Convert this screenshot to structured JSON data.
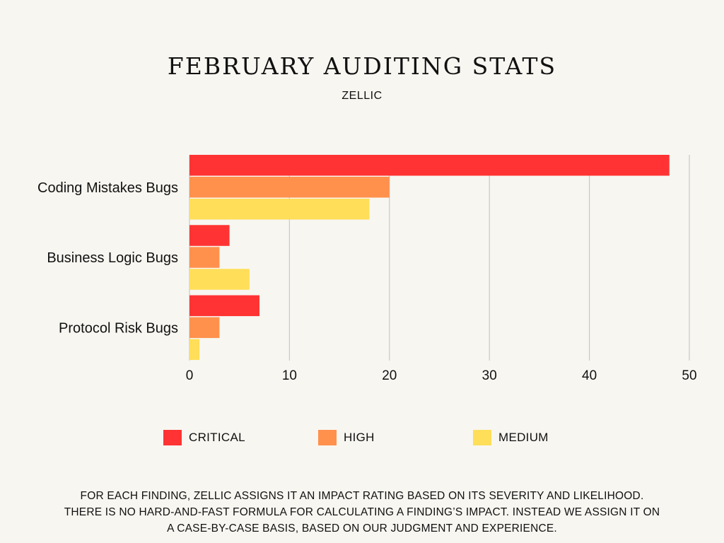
{
  "title": "FEBRUARY AUDITING STATS",
  "subtitle": "ZELLIC",
  "colors": {
    "critical": "#ff3333",
    "high": "#ff914d",
    "medium": "#ffde59",
    "grid": "#c8c8c8",
    "background": "#f8f6f1"
  },
  "legend": [
    {
      "label": "CRITICAL",
      "color_key": "critical"
    },
    {
      "label": "HIGH",
      "color_key": "high"
    },
    {
      "label": "MEDIUM",
      "color_key": "medium"
    }
  ],
  "footnote": "FOR EACH FINDING, ZELLIC ASSIGNS IT AN IMPACT RATING BASED ON ITS SEVERITY AND LIKELIHOOD. THERE IS NO HARD-AND-FAST FORMULA FOR CALCULATING A FINDING’S IMPACT. INSTEAD WE ASSIGN IT ON A CASE-BY-CASE BASIS, BASED ON OUR JUDGMENT AND EXPERIENCE.",
  "chart_data": {
    "type": "bar",
    "orientation": "horizontal",
    "title": "FEBRUARY AUDITING STATS",
    "subtitle": "ZELLIC",
    "categories": [
      "Coding Mistakes Bugs",
      "Business Logic Bugs",
      "Protocol Risk Bugs"
    ],
    "series": [
      {
        "name": "CRITICAL",
        "color_key": "critical",
        "values": [
          48,
          4,
          7
        ]
      },
      {
        "name": "HIGH",
        "color_key": "high",
        "values": [
          20,
          3,
          3
        ]
      },
      {
        "name": "MEDIUM",
        "color_key": "medium",
        "values": [
          18,
          6,
          1
        ]
      }
    ],
    "xlim": [
      0,
      50
    ],
    "xticks": [
      0,
      10,
      20,
      30,
      40,
      50
    ],
    "xlabel": "",
    "ylabel": "",
    "grid": true,
    "legend_position": "bottom"
  }
}
